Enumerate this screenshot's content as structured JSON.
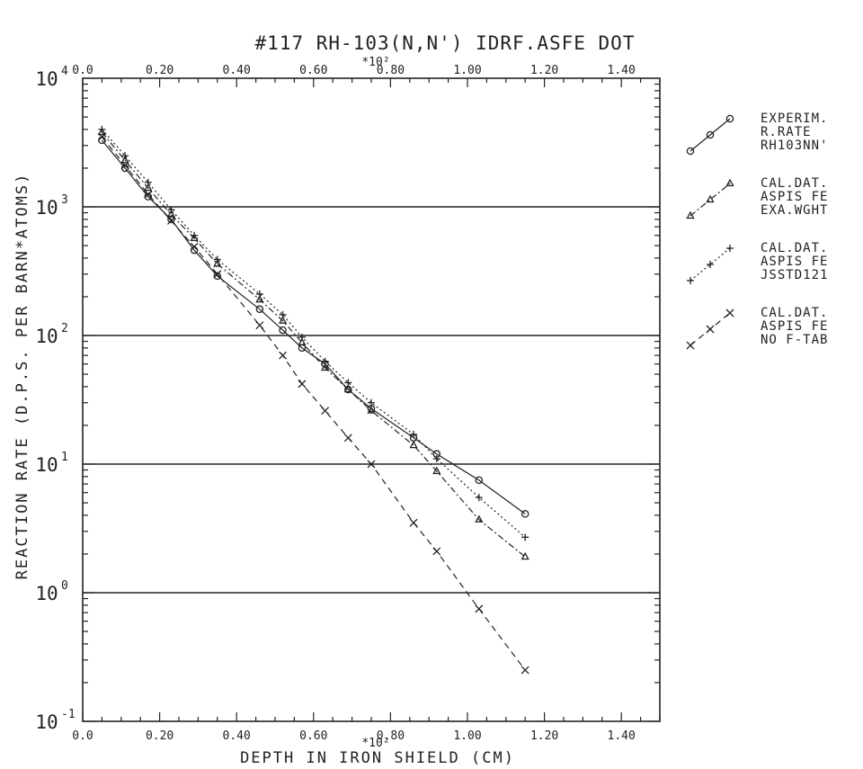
{
  "chart_data": {
    "type": "line",
    "title": "#117 RH-103(N,N') IDRF.ASFE DOT",
    "xlabel": "DEPTH IN IRON SHIELD (CM)",
    "ylabel": "REACTION RATE (D.P.S. PER BARN*ATOMS)",
    "x_multiplier": "*10²",
    "xlim": [
      0,
      1.5
    ],
    "ylim": [
      0.1,
      10000
    ],
    "y_scale": "log",
    "grid": "horizontal at decades",
    "x_ticks": [
      "0.0",
      "0.20",
      "0.40",
      "0.60",
      "0.80",
      "1.00",
      "1.20",
      "1.40"
    ],
    "x_ticks_top": [
      "0.0",
      "0.20",
      "0.40",
      "0.60",
      "0.80",
      "1.00",
      "1.20",
      "1.40"
    ],
    "y_ticks": [
      {
        "base": "10",
        "exp": "-1"
      },
      {
        "base": "10",
        "exp": "0"
      },
      {
        "base": "10",
        "exp": "1"
      },
      {
        "base": "10",
        "exp": "2"
      },
      {
        "base": "10",
        "exp": "3"
      },
      {
        "base": "10",
        "exp": "4"
      }
    ],
    "legend_position": "right",
    "series": [
      {
        "name": "EXPERIM. R.RATE RH103NN'",
        "legend": [
          "EXPERIM.",
          "R.RATE",
          "RH103NN'"
        ],
        "marker": "circle",
        "dash": "solid",
        "x": [
          0.05,
          0.11,
          0.17,
          0.23,
          0.29,
          0.35,
          0.46,
          0.52,
          0.57,
          0.63,
          0.69,
          0.75,
          0.86,
          0.92,
          1.03,
          1.15
        ],
        "y": [
          3300,
          2000,
          1200,
          800,
          460,
          290,
          160,
          110,
          80,
          60,
          38,
          27,
          16,
          12,
          7.5,
          4.1
        ]
      },
      {
        "name": "CAL.DAT. ASPIS FE EXA.WGHT",
        "legend": [
          "CAL.DAT.",
          "ASPIS FE",
          "EXA.WGHT"
        ],
        "marker": "triangle",
        "dash": "dashdot",
        "x": [
          0.05,
          0.11,
          0.17,
          0.23,
          0.29,
          0.35,
          0.46,
          0.52,
          0.57,
          0.63,
          0.69,
          0.75,
          0.86,
          0.92,
          1.03,
          1.15
        ],
        "y": [
          3800,
          2300,
          1400,
          870,
          570,
          360,
          190,
          130,
          88,
          56,
          38,
          26,
          14,
          8.8,
          3.7,
          1.9
        ]
      },
      {
        "name": "CAL.DAT. ASPIS FE JSSTD121",
        "legend": [
          "CAL.DAT.",
          "ASPIS FE",
          "JSSTD121"
        ],
        "marker": "plus",
        "dash": "dotted",
        "x": [
          0.05,
          0.11,
          0.17,
          0.23,
          0.29,
          0.35,
          0.46,
          0.52,
          0.57,
          0.63,
          0.69,
          0.75,
          0.86,
          0.92,
          1.03,
          1.15
        ],
        "y": [
          4000,
          2500,
          1550,
          950,
          600,
          390,
          210,
          145,
          97,
          63,
          43,
          30,
          17,
          11,
          5.5,
          2.7
        ]
      },
      {
        "name": "CAL.DAT. ASPIS FE NO F-TAB",
        "legend": [
          "CAL.DAT.",
          "ASPIS FE",
          "NO F-TAB"
        ],
        "marker": "x",
        "dash": "dashed",
        "x": [
          0.05,
          0.11,
          0.17,
          0.23,
          0.29,
          0.35,
          0.46,
          0.52,
          0.57,
          0.63,
          0.69,
          0.75,
          0.86,
          0.92,
          1.03,
          1.15
        ],
        "y": [
          3500,
          2100,
          1250,
          780,
          490,
          300,
          120,
          70,
          42,
          26,
          16,
          10,
          3.5,
          2.1,
          0.75,
          0.25
        ]
      }
    ]
  }
}
